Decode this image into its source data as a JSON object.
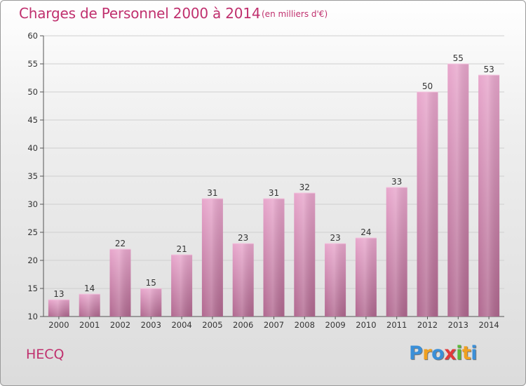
{
  "header": {
    "title": "Charges de Personnel 2000 à 2014",
    "subtitle": "(en milliers d'€)"
  },
  "footer": {
    "commune": "HECQ",
    "logo_letters": [
      "P",
      "r",
      "o",
      "x",
      "i",
      "t",
      "i"
    ],
    "logo_colors": [
      "#3a8fd8",
      "#f0a020",
      "#3a8fd8",
      "#e23a3a",
      "#5cb83a",
      "#f0a020",
      "#3a8fd8"
    ]
  },
  "chart_data": {
    "type": "bar",
    "title": "Charges de Personnel 2000 à 2014",
    "subtitle": "(en milliers d'€)",
    "categories": [
      "2000",
      "2001",
      "2002",
      "2003",
      "2004",
      "2005",
      "2006",
      "2007",
      "2008",
      "2009",
      "2010",
      "2011",
      "2012",
      "2013",
      "2014"
    ],
    "values": [
      13,
      14,
      22,
      15,
      21,
      31,
      23,
      31,
      32,
      23,
      24,
      33,
      50,
      55,
      53
    ],
    "ylim": [
      10,
      60
    ],
    "yticks": [
      10,
      15,
      20,
      25,
      30,
      35,
      40,
      45,
      50,
      55,
      60
    ],
    "grid": true,
    "bar_color_top": "#e8a6cc",
    "bar_color_bottom": "#b0688f"
  }
}
